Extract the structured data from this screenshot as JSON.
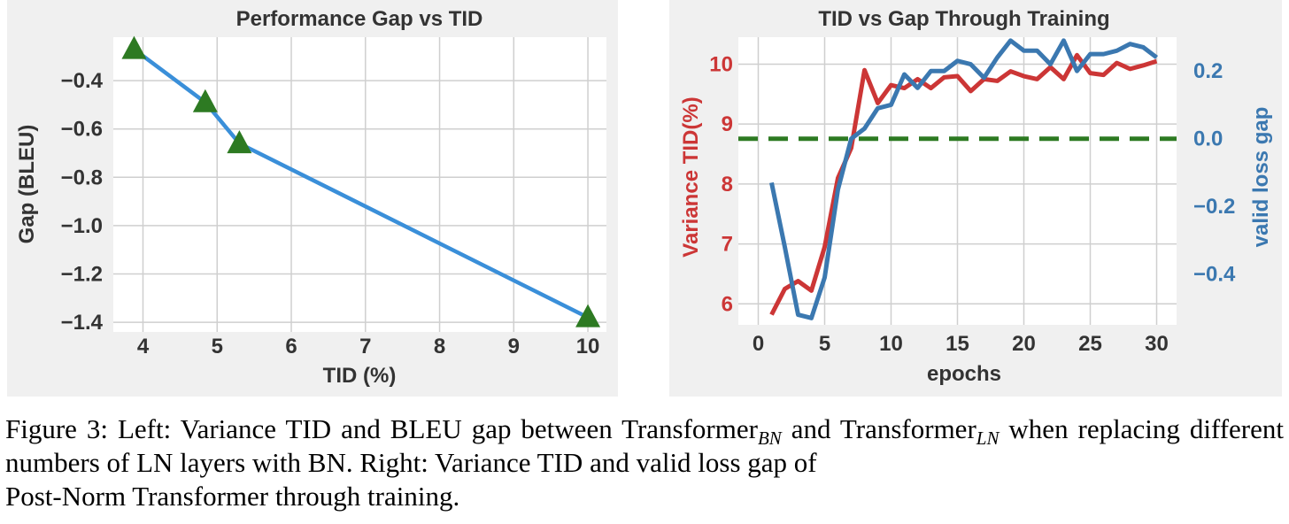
{
  "chart_data": [
    {
      "type": "line",
      "title": "Performance Gap vs TID",
      "xlabel": "TID (%)",
      "ylabel": "Gap (BLEU)",
      "xlim": [
        3.6,
        10.25
      ],
      "ylim": [
        -1.44,
        -0.22
      ],
      "xticks": [
        4,
        5,
        6,
        7,
        8,
        9,
        10
      ],
      "xtick_labels": [
        "4",
        "5",
        "6",
        "7",
        "8",
        "9",
        "10"
      ],
      "yticks": [
        -0.4,
        -0.6,
        -0.8,
        -1.0,
        -1.2,
        -1.4
      ],
      "ytick_labels": [
        "−0.4",
        "−0.6",
        "−0.8",
        "−1.0",
        "−1.2",
        "−1.4"
      ],
      "grid": true,
      "series": [
        {
          "x": [
            3.88,
            4.84,
            5.3,
            10.0
          ],
          "y": [
            -0.27,
            -0.49,
            -0.66,
            -1.38
          ],
          "color": "#3a8fd9",
          "marker": "triangle",
          "marker_color": "#2d7a22"
        }
      ]
    },
    {
      "type": "line",
      "title": "TID vs Gap Through Training",
      "xlabel": "epochs",
      "ylabel": "Variance TID(%)",
      "ylabel_right": "valid loss gap",
      "xlim": [
        -1.5,
        31.5
      ],
      "ylim": [
        5.65,
        10.45
      ],
      "ylim_right": [
        -0.55,
        0.3
      ],
      "xticks": [
        0,
        5,
        10,
        15,
        20,
        25,
        30
      ],
      "xtick_labels": [
        "0",
        "5",
        "10",
        "15",
        "20",
        "25",
        "30"
      ],
      "yticks": [
        6,
        7,
        8,
        9,
        10
      ],
      "ytick_labels": [
        "6",
        "7",
        "8",
        "9",
        "10"
      ],
      "yticks_right": [
        0.2,
        0.0,
        -0.2,
        -0.4
      ],
      "ytick_labels_right": [
        "0.2",
        "0.0",
        "−0.2",
        "−0.4"
      ],
      "grid": true,
      "series": [
        {
          "axis": "left",
          "color": "#cc3636",
          "x": [
            1,
            2,
            3,
            4,
            5,
            6,
            7,
            8,
            9,
            10,
            11,
            12,
            13,
            14,
            15,
            16,
            17,
            18,
            19,
            20,
            21,
            22,
            23,
            24,
            25,
            26,
            27,
            28,
            29,
            30
          ],
          "y": [
            5.82,
            6.25,
            6.38,
            6.22,
            6.95,
            8.1,
            8.6,
            9.9,
            9.35,
            9.65,
            9.6,
            9.75,
            9.6,
            9.78,
            9.8,
            9.55,
            9.75,
            9.72,
            9.88,
            9.8,
            9.75,
            9.95,
            9.75,
            10.15,
            9.85,
            9.82,
            10.02,
            9.92,
            9.98,
            10.05
          ]
        },
        {
          "axis": "right",
          "color": "#3b78b0",
          "x": [
            1,
            2,
            3,
            4,
            5,
            6,
            7,
            8,
            9,
            10,
            11,
            12,
            13,
            14,
            15,
            16,
            17,
            18,
            19,
            20,
            21,
            22,
            23,
            24,
            25,
            26,
            27,
            28,
            29,
            30
          ],
          "y": [
            -0.13,
            -0.32,
            -0.52,
            -0.53,
            -0.41,
            -0.15,
            0.0,
            0.03,
            0.09,
            0.1,
            0.19,
            0.15,
            0.2,
            0.2,
            0.23,
            0.22,
            0.18,
            0.24,
            0.29,
            0.26,
            0.26,
            0.22,
            0.29,
            0.2,
            0.25,
            0.25,
            0.26,
            0.28,
            0.27,
            0.24
          ]
        },
        {
          "axis": "right",
          "color": "#2d7a22",
          "style": "dashed",
          "x": [
            -1.5,
            31.5
          ],
          "y": [
            0.0,
            0.0
          ]
        }
      ]
    }
  ],
  "caption": {
    "prefix": "Figure 3: Left: Variance TID and BLEU gap between Transformer",
    "sub_bn": "BN",
    "middle": " and Transformer",
    "sub_ln": "LN",
    "suffix": " when replacing different numbers of LN layers with BN. Right: Variance TID and valid loss gap of",
    "last_line": "Post-Norm Transformer through training."
  }
}
